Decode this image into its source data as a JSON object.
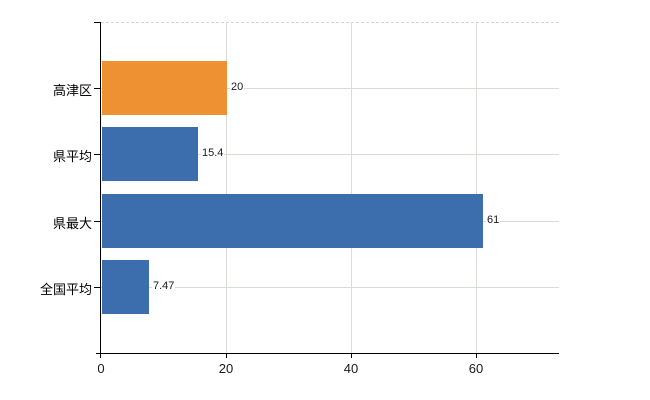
{
  "chart_data": {
    "type": "bar",
    "orientation": "horizontal",
    "title": "",
    "categories": [
      "高津区",
      "県平均",
      "県最大",
      "全国平均"
    ],
    "values": [
      20,
      15.4,
      61,
      7.47
    ],
    "value_labels": [
      "20",
      "15.4",
      "61",
      "7.47"
    ],
    "bar_colors": [
      "#ee9133",
      "#3c6eae",
      "#3c6eae",
      "#3c6eae"
    ],
    "highlight_color": "#ee9133",
    "default_color": "#3c6eae",
    "x_tick_labels": [
      "0",
      "20",
      "40",
      "60"
    ],
    "x_tick_values": [
      0,
      20,
      40,
      60
    ],
    "xlim": [
      0,
      73.3
    ],
    "grid": true,
    "legend": false,
    "xlabel": "",
    "ylabel": ""
  },
  "colors": {
    "axis": "#000000",
    "grid_vertical": "#d9ded9",
    "grid_horizontal": "#d6dcd6",
    "top_border": "#d2d7d2",
    "text": "#1a1a1a",
    "background": "#ffffff"
  }
}
